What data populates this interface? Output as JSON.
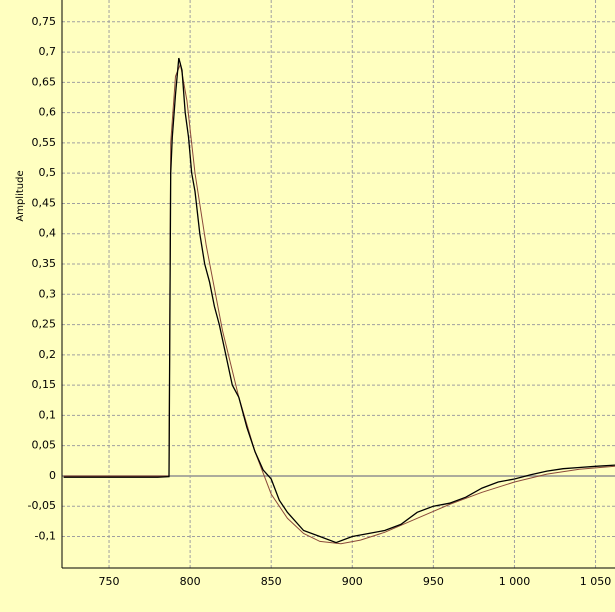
{
  "chart_data": {
    "type": "line",
    "y_label": "Amplitude",
    "xlim": [
      721,
      1062
    ],
    "ylim": [
      -0.152,
      0.786
    ],
    "xticks": [
      750,
      800,
      850,
      900,
      950,
      {
        "value": 1000,
        "label": "1 000"
      },
      {
        "value": 1050,
        "label": "1 050"
      }
    ],
    "yticks": [
      {
        "value": -0.1,
        "label": "-0,1"
      },
      {
        "value": -0.05,
        "label": "-0,05"
      },
      0,
      {
        "value": 0.05,
        "label": "0,05"
      },
      {
        "value": 0.1,
        "label": "0,1"
      },
      {
        "value": 0.15,
        "label": "0,15"
      },
      {
        "value": 0.2,
        "label": "0,2"
      },
      {
        "value": 0.25,
        "label": "0,25"
      },
      {
        "value": 0.3,
        "label": "0,3"
      },
      {
        "value": 0.35,
        "label": "0,35"
      },
      {
        "value": 0.4,
        "label": "0,4"
      },
      {
        "value": 0.45,
        "label": "0,45"
      },
      {
        "value": 0.5,
        "label": "0,5"
      },
      {
        "value": 0.55,
        "label": "0,55"
      },
      {
        "value": 0.6,
        "label": "0,6"
      },
      {
        "value": 0.65,
        "label": "0,65"
      },
      {
        "value": 0.7,
        "label": "0,7"
      },
      {
        "value": 0.75,
        "label": "0,75"
      }
    ],
    "grid": true,
    "series": [
      {
        "color": "#8b4a3a",
        "x": [
          722,
          787,
          788,
          791,
          794,
          798,
          803,
          810,
          820,
          830,
          840,
          850,
          860,
          870,
          880,
          893,
          905,
          920,
          940,
          960,
          980,
          1000,
          1020,
          1040,
          1062
        ],
        "values": [
          0,
          0,
          0.55,
          0.66,
          0.68,
          0.62,
          0.5,
          0.38,
          0.24,
          0.13,
          0.04,
          -0.03,
          -0.07,
          -0.095,
          -0.108,
          -0.112,
          -0.106,
          -0.093,
          -0.07,
          -0.047,
          -0.027,
          -0.01,
          0.003,
          0.011,
          0.016
        ]
      },
      {
        "color": "#000000",
        "x": [
          722,
          780,
          787,
          788,
          789,
          791,
          793,
          795,
          797,
          799,
          801,
          803,
          806,
          809,
          812,
          815,
          818,
          822,
          826,
          830,
          835,
          840,
          845,
          850,
          855,
          860,
          870,
          880,
          890,
          900,
          910,
          920,
          930,
          940,
          950,
          960,
          970,
          980,
          990,
          1000,
          1010,
          1020,
          1030,
          1040,
          1050,
          1062
        ],
        "values": [
          -0.002,
          -0.002,
          -0.001,
          0.5,
          0.56,
          0.63,
          0.69,
          0.67,
          0.6,
          0.56,
          0.5,
          0.47,
          0.4,
          0.35,
          0.32,
          0.28,
          0.25,
          0.2,
          0.15,
          0.13,
          0.08,
          0.04,
          0.01,
          -0.005,
          -0.04,
          -0.06,
          -0.09,
          -0.1,
          -0.11,
          -0.1,
          -0.095,
          -0.09,
          -0.08,
          -0.06,
          -0.05,
          -0.045,
          -0.035,
          -0.02,
          -0.01,
          -0.005,
          0.002,
          0.008,
          0.012,
          0.014,
          0.016,
          0.018
        ]
      }
    ]
  }
}
